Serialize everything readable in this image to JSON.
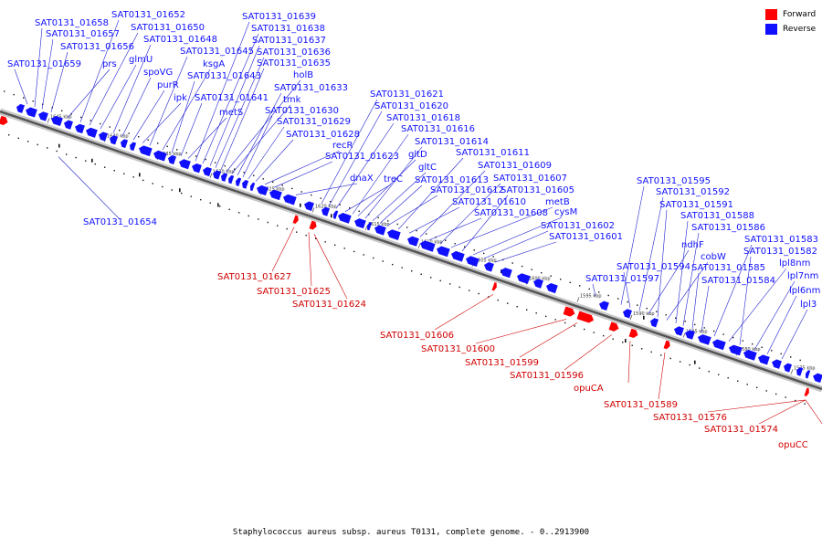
{
  "legend": {
    "forward": {
      "label": "Forward",
      "color": "#ff0000"
    },
    "reverse": {
      "label": "Reverse",
      "color": "#1010ff"
    }
  },
  "caption": "Staphylococcus aureus subsp. aureus T0131, complete genome. - 0..2913900",
  "colors": {
    "backbone_dark": "#555555",
    "backbone_light": "#c8c8c8",
    "leader_forward": "#d00000",
    "leader_reverse": "#2020d0"
  },
  "scale_ticks": [
    "1645 kbp",
    "1640 kbp",
    "1635 kbp",
    "1630 kbp",
    "1625 kbp",
    "1620 kbp",
    "1615 kbp",
    "1610 kbp",
    "1605 kbp",
    "1600 kbp",
    "1595 kbp",
    "1590 kbp",
    "1585 kbp",
    "1580 kbp",
    "1575 kbp"
  ],
  "reverse_labels": [
    "SAT0131_01659",
    "SAT0131_01658",
    "SAT0131_01657",
    "SAT0131_01656",
    "prs",
    "SAT0131_01652",
    "SAT0131_01650",
    "glmU",
    "SAT0131_01648",
    "spoVG",
    "purR",
    "ipk",
    "SAT0131_01645",
    "ksgA",
    "SAT0131_01643",
    "SAT0131_01641",
    "metS",
    "SAT0131_01639",
    "SAT0131_01638",
    "SAT0131_01637",
    "SAT0131_01636",
    "SAT0131_01635",
    "holB",
    "tmk",
    "SAT0131_01633",
    "SAT0131_01630",
    "SAT0131_01629",
    "SAT0131_01628",
    "recR",
    "SAT0131_01623",
    "dnaX",
    "SAT0131_01621",
    "SAT0131_01620",
    "SAT0131_01618",
    "treC",
    "SAT0131_01616",
    "gltD",
    "SAT0131_01614",
    "gltC",
    "SAT0131_01613",
    "SAT0131_01612",
    "SAT0131_01611",
    "SAT0131_01610",
    "SAT0131_01609",
    "SAT0131_01608",
    "SAT0131_01607",
    "metB",
    "SAT0131_01605",
    "cysM",
    "SAT0131_01602",
    "SAT0131_01601",
    "SAT0131_01597",
    "SAT0131_01595",
    "SAT0131_01594",
    "SAT0131_01592",
    "ndhF",
    "SAT0131_01591",
    "cobW",
    "SAT0131_01588",
    "SAT0131_01586",
    "SAT0131_01585",
    "SAT0131_01584",
    "SAT0131_01583",
    "lpl8nm",
    "SAT0131_01582",
    "lpl7nm",
    "lpl6nm",
    "lpl3",
    "SAT0131_01654"
  ],
  "forward_labels": [
    "SAT0131_01627",
    "SAT0131_01625",
    "SAT0131_01624",
    "SAT0131_01606",
    "SAT0131_01600",
    "SAT0131_01599",
    "SAT0131_01596",
    "opuCA",
    "SAT0131_01589",
    "SAT0131_01576",
    "SAT0131_01574",
    "opuCC"
  ]
}
